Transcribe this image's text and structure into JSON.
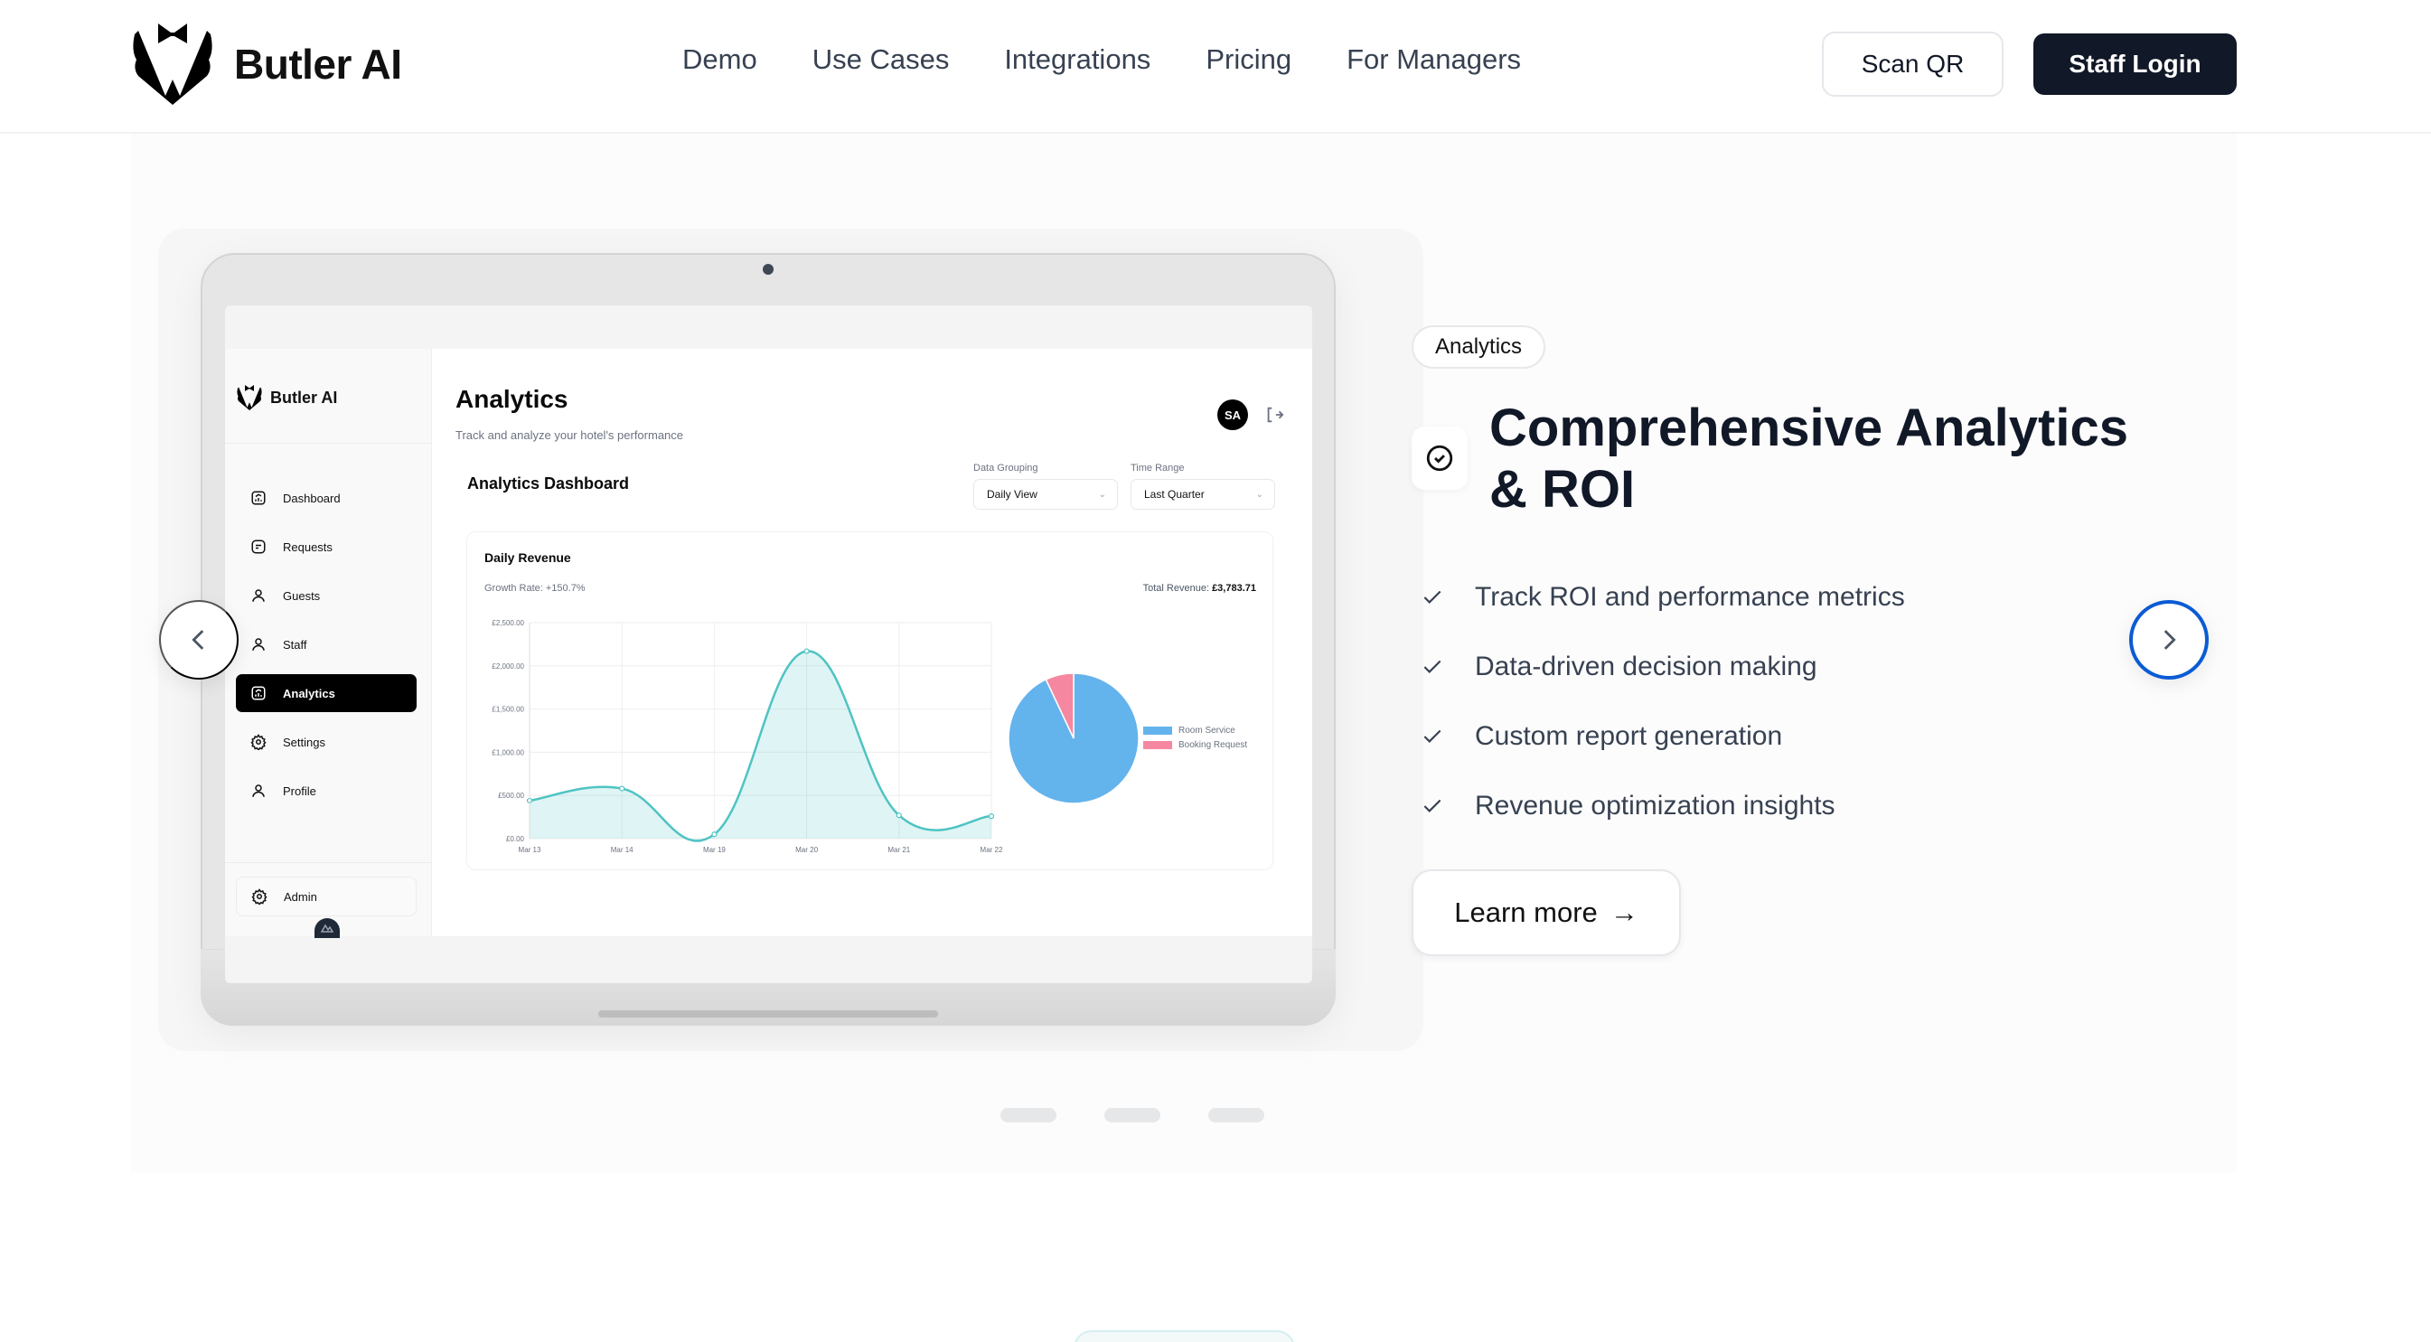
{
  "header": {
    "brand": "Butler AI",
    "nav": [
      "Demo",
      "Use Cases",
      "Integrations",
      "Pricing",
      "For Managers"
    ],
    "scan_qr": "Scan QR",
    "staff_login": "Staff Login"
  },
  "slide": {
    "badge": "Analytics",
    "heading": "Comprehensive Analytics & ROI",
    "features": [
      "Track ROI and performance metrics",
      "Data-driven decision making",
      "Custom report generation",
      "Revenue optimization insights"
    ],
    "learn_more": "Learn more",
    "arrow_glyph": "→"
  },
  "carousel": {
    "dots": 3,
    "accent": "#0b5bd3"
  },
  "mockup": {
    "brand": "Butler AI",
    "sidebar": [
      {
        "label": "Dashboard",
        "icon": "chart-square-icon"
      },
      {
        "label": "Requests",
        "icon": "message-square-icon"
      },
      {
        "label": "Guests",
        "icon": "user-icon"
      },
      {
        "label": "Staff",
        "icon": "user-icon"
      },
      {
        "label": "Analytics",
        "icon": "chart-square-icon",
        "active": true
      },
      {
        "label": "Settings",
        "icon": "gear-icon"
      },
      {
        "label": "Profile",
        "icon": "user-icon"
      }
    ],
    "admin": "Admin",
    "title": "Analytics",
    "subtitle": "Track and analyze your hotel's performance",
    "avatar": "SA",
    "dashboard_title": "Analytics Dashboard",
    "data_grouping": {
      "label": "Data Grouping",
      "value": "Daily View"
    },
    "time_range": {
      "label": "Time Range",
      "value": "Last Quarter"
    },
    "chart_title": "Daily Revenue",
    "growth_rate": "Growth Rate: +150.7%",
    "total_revenue_label": "Total Revenue: ",
    "total_revenue_value": "£3,783.71",
    "legend": [
      {
        "label": "Room Service",
        "color": "#63b3ed"
      },
      {
        "label": "Booking Request",
        "color": "#f687a0"
      }
    ]
  },
  "chart_data": [
    {
      "type": "area",
      "title": "Daily Revenue",
      "subtitle": "Growth Rate: +150.7%",
      "categories": [
        "Mar 13",
        "Mar 14",
        "Mar 19",
        "Mar 20",
        "Mar 21",
        "Mar 22"
      ],
      "values": [
        440,
        580,
        50,
        2170,
        270,
        260
      ],
      "yticks": [
        "£0.00",
        "£500.00",
        "£1,000.00",
        "£1,500.00",
        "£2,000.00",
        "£2,500.00"
      ],
      "ylim": [
        0,
        2500
      ],
      "color": "#4fc3c3",
      "grid": true
    },
    {
      "type": "pie",
      "title": "Total Revenue: £3,783.71",
      "categories": [
        "Room Service",
        "Booking Request"
      ],
      "values": [
        93,
        7
      ],
      "colors": [
        "#63b3ed",
        "#f687a0"
      ],
      "legend_position": "right"
    }
  ]
}
